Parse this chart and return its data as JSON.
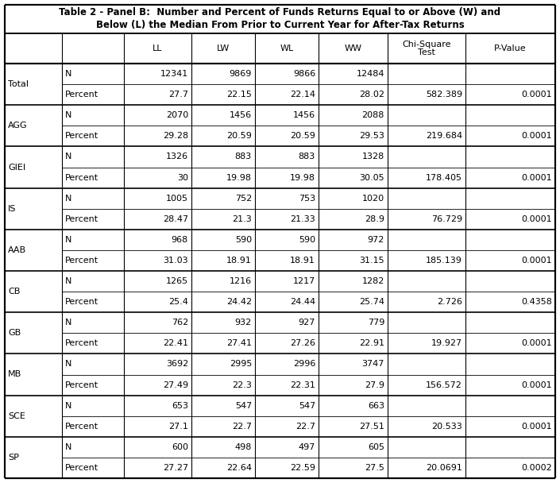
{
  "title1": "Table 2 - Panel B:  Number and Percent of Funds Returns Equal to or Above (W) and",
  "title2": "Below (L) the Median From Prior to Current Year for After-Tax Returns",
  "row_groups": [
    {
      "label": "Total",
      "rows": [
        {
          "sub": "N",
          "LL": "12341",
          "LW": "9869",
          "WL": "9866",
          "WW": "12484",
          "chi": "",
          "pval": ""
        },
        {
          "sub": "Percent",
          "LL": "27.7",
          "LW": "22.15",
          "WL": "22.14",
          "WW": "28.02",
          "chi": "582.389",
          "pval": "0.0001"
        }
      ]
    },
    {
      "label": "AGG",
      "rows": [
        {
          "sub": "N",
          "LL": "2070",
          "LW": "1456",
          "WL": "1456",
          "WW": "2088",
          "chi": "",
          "pval": ""
        },
        {
          "sub": "Percent",
          "LL": "29.28",
          "LW": "20.59",
          "WL": "20.59",
          "WW": "29.53",
          "chi": "219.684",
          "pval": "0.0001"
        }
      ]
    },
    {
      "label": "GIEI",
      "rows": [
        {
          "sub": "N",
          "LL": "1326",
          "LW": "883",
          "WL": "883",
          "WW": "1328",
          "chi": "",
          "pval": ""
        },
        {
          "sub": "Percent",
          "LL": "30",
          "LW": "19.98",
          "WL": "19.98",
          "WW": "30.05",
          "chi": "178.405",
          "pval": "0.0001"
        }
      ]
    },
    {
      "label": "IS",
      "rows": [
        {
          "sub": "N",
          "LL": "1005",
          "LW": "752",
          "WL": "753",
          "WW": "1020",
          "chi": "",
          "pval": ""
        },
        {
          "sub": "Percent",
          "LL": "28.47",
          "LW": "21.3",
          "WL": "21.33",
          "WW": "28.9",
          "chi": "76.729",
          "pval": "0.0001"
        }
      ]
    },
    {
      "label": "AAB",
      "rows": [
        {
          "sub": "N",
          "LL": "968",
          "LW": "590",
          "WL": "590",
          "WW": "972",
          "chi": "",
          "pval": ""
        },
        {
          "sub": "Percent",
          "LL": "31.03",
          "LW": "18.91",
          "WL": "18.91",
          "WW": "31.15",
          "chi": "185.139",
          "pval": "0.0001"
        }
      ]
    },
    {
      "label": "CB",
      "rows": [
        {
          "sub": "N",
          "LL": "1265",
          "LW": "1216",
          "WL": "1217",
          "WW": "1282",
          "chi": "",
          "pval": ""
        },
        {
          "sub": "Percent",
          "LL": "25.4",
          "LW": "24.42",
          "WL": "24.44",
          "WW": "25.74",
          "chi": "2.726",
          "pval": "0.4358"
        }
      ]
    },
    {
      "label": "GB",
      "rows": [
        {
          "sub": "N",
          "LL": "762",
          "LW": "932",
          "WL": "927",
          "WW": "779",
          "chi": "",
          "pval": ""
        },
        {
          "sub": "Percent",
          "LL": "22.41",
          "LW": "27.41",
          "WL": "27.26",
          "WW": "22.91",
          "chi": "19.927",
          "pval": "0.0001"
        }
      ]
    },
    {
      "label": "MB",
      "rows": [
        {
          "sub": "N",
          "LL": "3692",
          "LW": "2995",
          "WL": "2996",
          "WW": "3747",
          "chi": "",
          "pval": ""
        },
        {
          "sub": "Percent",
          "LL": "27.49",
          "LW": "22.3",
          "WL": "22.31",
          "WW": "27.9",
          "chi": "156.572",
          "pval": "0.0001"
        }
      ]
    },
    {
      "label": "SCE",
      "rows": [
        {
          "sub": "N",
          "LL": "653",
          "LW": "547",
          "WL": "547",
          "WW": "663",
          "chi": "",
          "pval": ""
        },
        {
          "sub": "Percent",
          "LL": "27.1",
          "LW": "22.7",
          "WL": "22.7",
          "WW": "27.51",
          "chi": "20.533",
          "pval": "0.0001"
        }
      ]
    },
    {
      "label": "SP",
      "rows": [
        {
          "sub": "N",
          "LL": "600",
          "LW": "498",
          "WL": "497",
          "WW": "605",
          "chi": "",
          "pval": ""
        },
        {
          "sub": "Percent",
          "LL": "27.27",
          "LW": "22.64",
          "WL": "22.59",
          "WW": "27.5",
          "chi": "20.0691",
          "pval": "0.0002"
        }
      ]
    }
  ],
  "bg_color": "#ffffff",
  "line_color": "#000000",
  "font_size": 8.0,
  "title_font_size": 8.5
}
